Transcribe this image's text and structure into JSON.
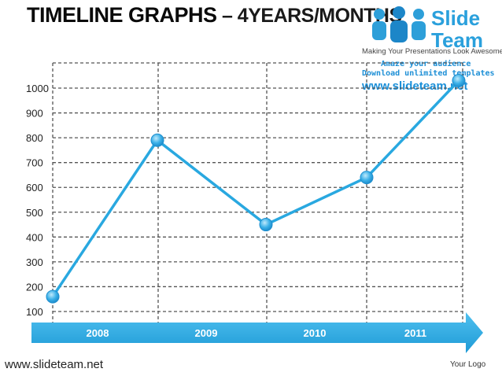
{
  "header": {
    "title_main": "TIMELINE  GRAPHS",
    "title_suffix": " – 4YEARS/MONTHS"
  },
  "logo": {
    "brand_line1": "Slide",
    "brand_line2": "Team",
    "tagline": "Making Your Presentations Look Awesome",
    "promo_line1": "Amaze your audience",
    "promo_line2": "Download unlimited templates",
    "url": "www.slideteam.net"
  },
  "footer": {
    "url": "www.slideteam.net",
    "logo_text": "Your Logo"
  },
  "colors": {
    "line": "#29a8e0",
    "marker": "#3ab0e8",
    "arrow": "#1e9ad6",
    "grid": "#555555"
  },
  "chart_data": {
    "type": "line",
    "title": "",
    "xlabel": "",
    "ylabel": "",
    "categories": [
      "2008",
      "2009",
      "2010",
      "2011"
    ],
    "y_ticks": [
      100,
      200,
      300,
      400,
      500,
      600,
      700,
      800,
      900,
      1000
    ],
    "ylim": [
      100,
      1000
    ],
    "grid": true,
    "series": [
      {
        "values": [
          {
            "x": 2007.0,
            "y": 160
          },
          {
            "x": 2008.0,
            "y": 790
          },
          {
            "x": 2009.0,
            "y": 450
          },
          {
            "x": 2010.0,
            "y": 640
          },
          {
            "x": 2011.0,
            "y": 1030
          }
        ]
      }
    ]
  }
}
